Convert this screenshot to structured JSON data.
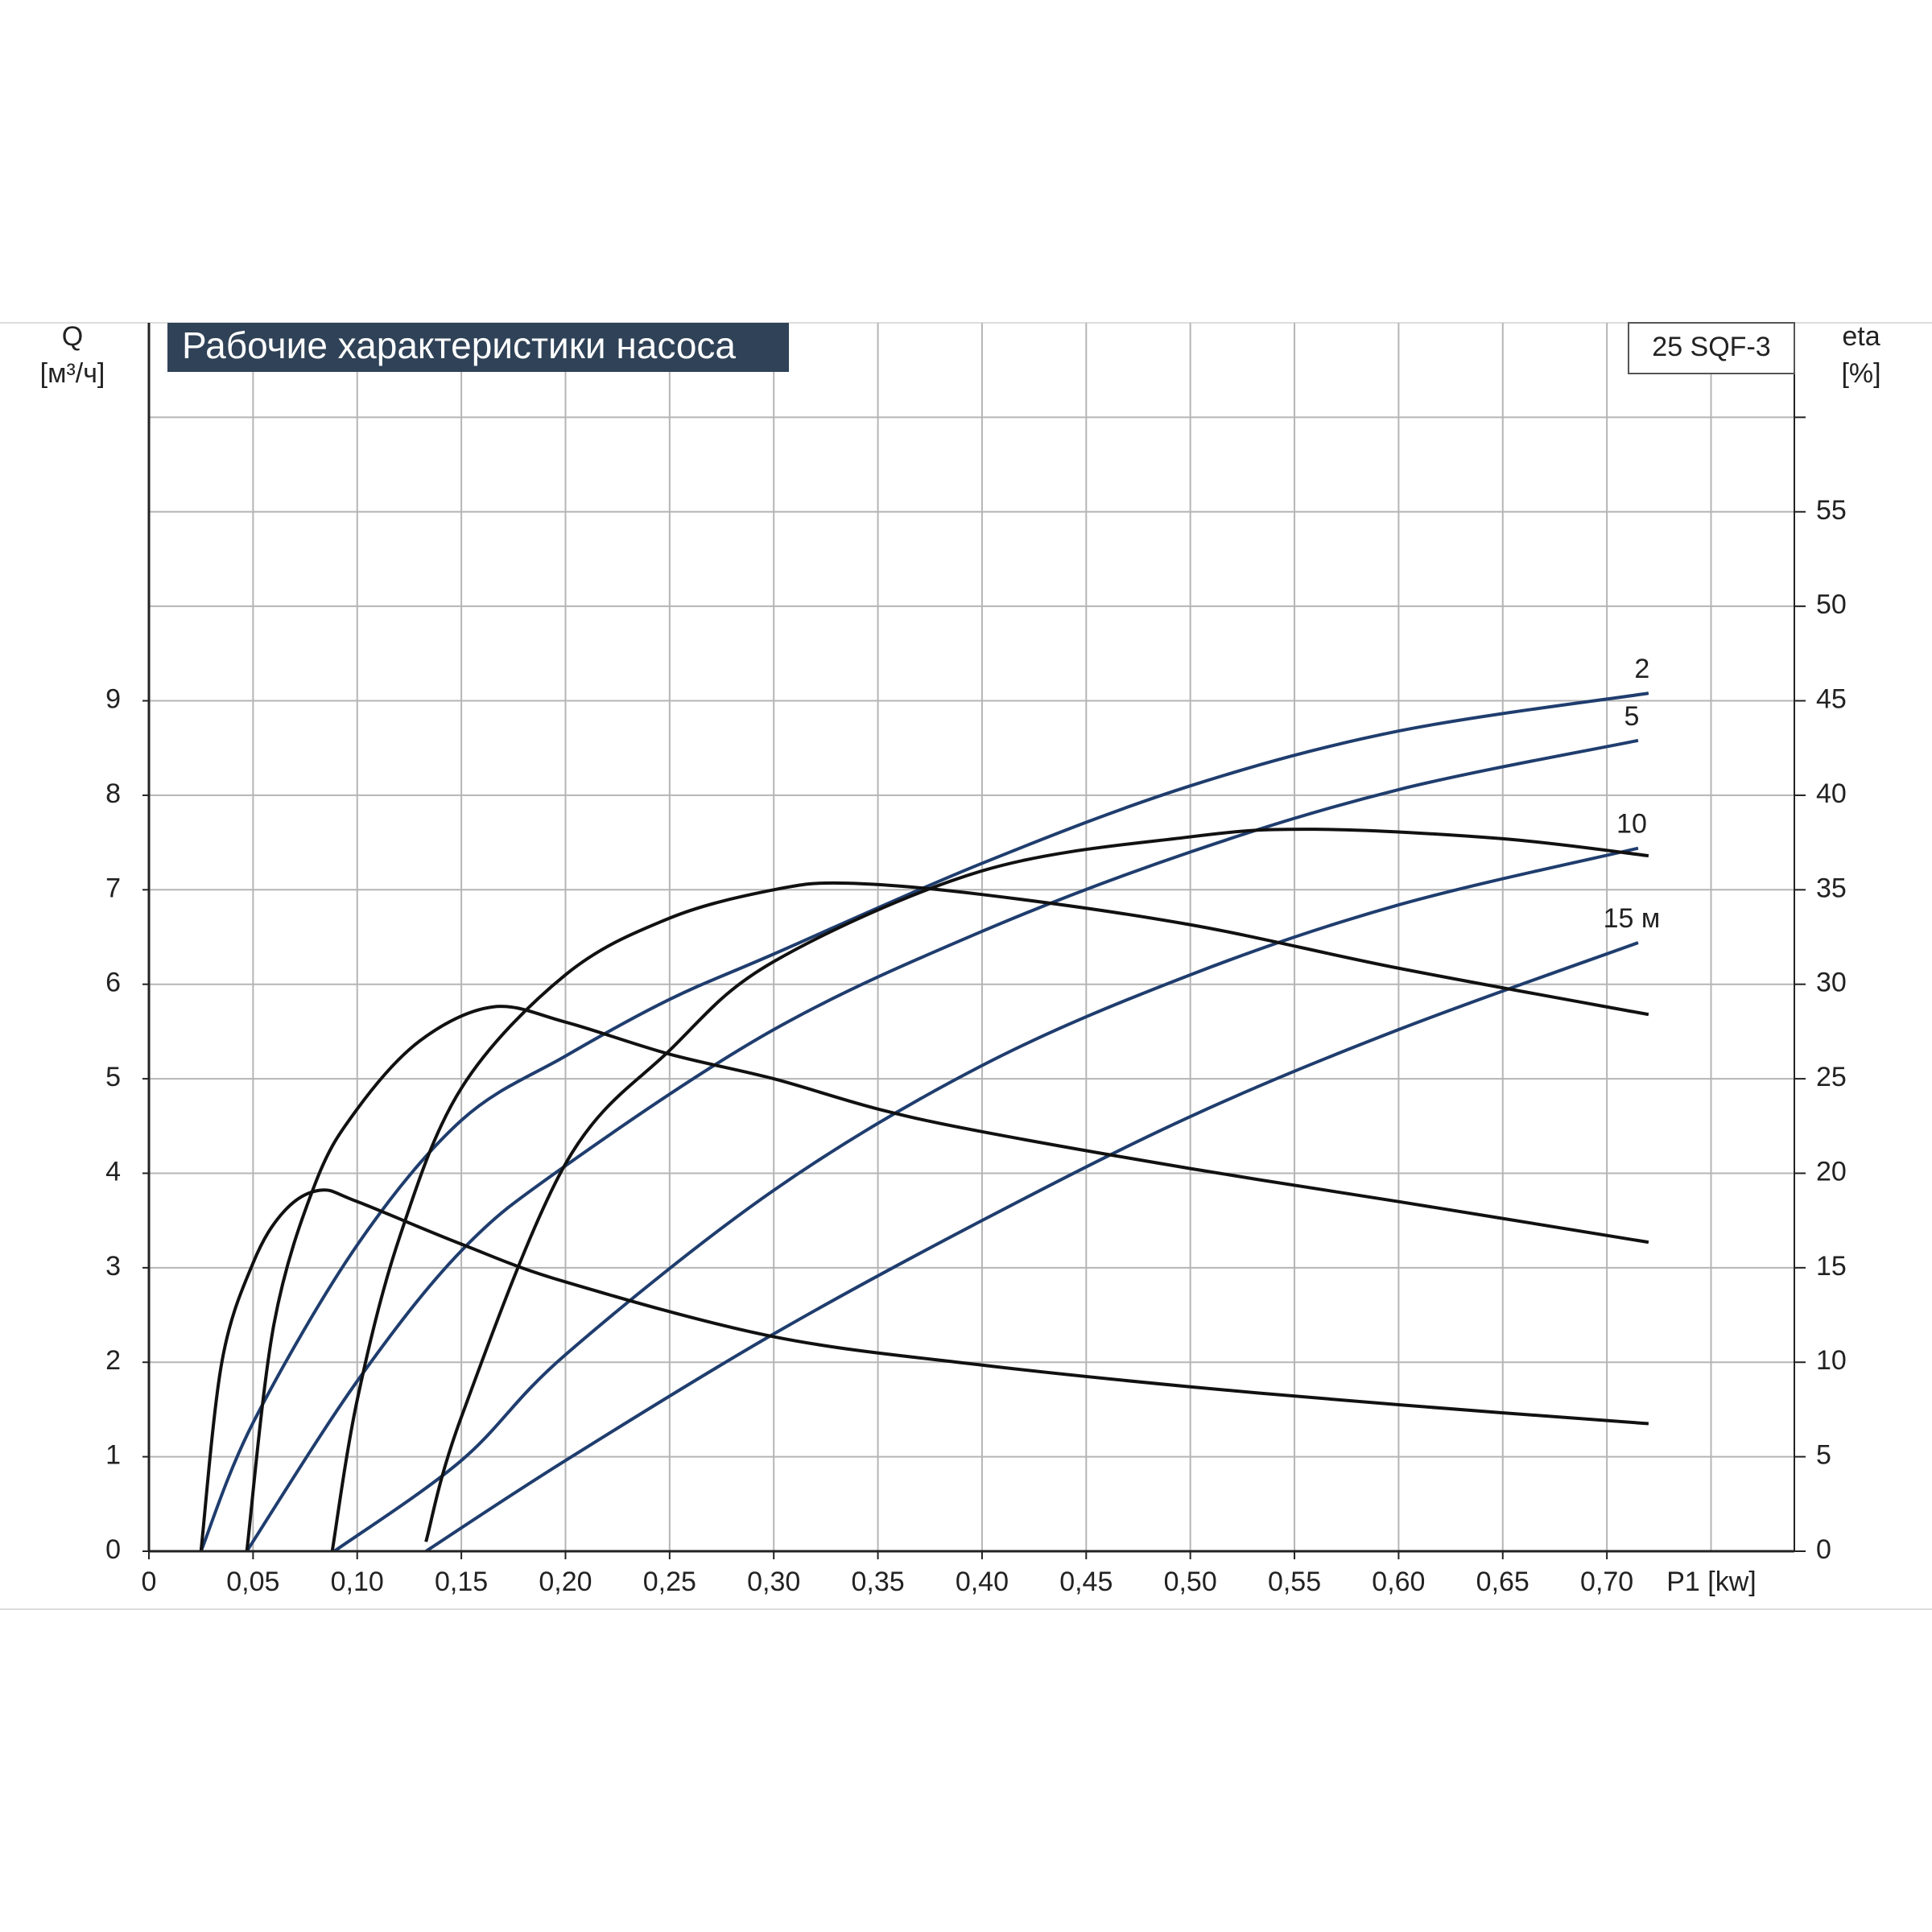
{
  "chart_data": {
    "type": "line",
    "title": "Рабочие характеристики насоса",
    "model": "25 SQF-3",
    "y_label": [
      "Q",
      "[м³/ч]"
    ],
    "y2_label": [
      "eta",
      "[%]"
    ],
    "x_label": "P1 [kw]",
    "xlim": [
      0,
      0.79
    ],
    "ylim": [
      0,
      13
    ],
    "y2lim": [
      0,
      65
    ],
    "xticks": [
      0,
      {
        "value": 0.05,
        "label": "0,05"
      },
      {
        "value": 0.1,
        "label": "0,10"
      },
      {
        "value": 0.15,
        "label": "0,15"
      },
      {
        "value": 0.2,
        "label": "0,20"
      },
      {
        "value": 0.25,
        "label": "0,25"
      },
      {
        "value": 0.3,
        "label": "0,30"
      },
      {
        "value": 0.35,
        "label": "0,35"
      },
      {
        "value": 0.4,
        "label": "0,40"
      },
      {
        "value": 0.45,
        "label": "0,45"
      },
      {
        "value": 0.5,
        "label": "0,50"
      },
      {
        "value": 0.55,
        "label": "0,55"
      },
      {
        "value": 0.6,
        "label": "0,60"
      },
      {
        "value": 0.65,
        "label": "0,65"
      },
      {
        "value": 0.7,
        "label": "0,70"
      }
    ],
    "yticks": [
      0,
      1,
      2,
      3,
      4,
      5,
      6,
      7,
      8,
      9
    ],
    "y2ticks": [
      0,
      5,
      10,
      15,
      20,
      25,
      30,
      35,
      40,
      45,
      50,
      55
    ],
    "grid": true,
    "series": [
      {
        "name": "2",
        "axis": "y2",
        "color": "#1f3d6e",
        "x": [
          0.025,
          0.05,
          0.1,
          0.15,
          0.2,
          0.25,
          0.3,
          0.4,
          0.5,
          0.6,
          0.72
        ],
        "values": [
          0,
          6.8,
          16.2,
          22.8,
          26.2,
          29.2,
          31.6,
          36.4,
          40.5,
          43.4,
          45.4
        ]
      },
      {
        "name": "5",
        "axis": "y2",
        "color": "#1f3d6e",
        "x": [
          0.047,
          0.1,
          0.15,
          0.2,
          0.3,
          0.4,
          0.5,
          0.6,
          0.715
        ],
        "values": [
          0,
          9,
          15.9,
          20.4,
          27.6,
          32.8,
          37,
          40.3,
          42.9
        ]
      },
      {
        "name": "10",
        "axis": "y2",
        "color": "#1f3d6e",
        "x": [
          0.089,
          0.15,
          0.2,
          0.3,
          0.4,
          0.5,
          0.6,
          0.715
        ],
        "values": [
          0,
          4.8,
          10.4,
          19.1,
          25.7,
          30.5,
          34.2,
          37.2
        ]
      },
      {
        "name": "15 м",
        "axis": "y2",
        "color": "#1f3d6e",
        "x": [
          0.133,
          0.2,
          0.3,
          0.4,
          0.5,
          0.6,
          0.715
        ],
        "values": [
          0,
          4.8,
          11.5,
          17.5,
          23,
          27.6,
          32.2
        ]
      },
      {
        "color": "#111111",
        "x": [
          0.025,
          0.035,
          0.05,
          0.065,
          0.082,
          0.1,
          0.15,
          0.2,
          0.3,
          0.4,
          0.5,
          0.6,
          0.72
        ],
        "values": [
          0,
          2.0,
          3.05,
          3.6,
          3.82,
          3.7,
          3.25,
          2.85,
          2.27,
          1.97,
          1.74,
          1.55,
          1.35
        ]
      },
      {
        "color": "#111111",
        "x": [
          0.047,
          0.06,
          0.08,
          0.1,
          0.13,
          0.165,
          0.2,
          0.25,
          0.3,
          0.35,
          0.4,
          0.5,
          0.6,
          0.72
        ],
        "values": [
          0,
          2.4,
          3.9,
          4.68,
          5.4,
          5.76,
          5.6,
          5.26,
          5.0,
          4.68,
          4.44,
          4.05,
          3.7,
          3.27
        ]
      },
      {
        "color": "#111111",
        "x": [
          0.088,
          0.1,
          0.12,
          0.15,
          0.2,
          0.25,
          0.3,
          0.335,
          0.4,
          0.5,
          0.6,
          0.72
        ],
        "values": [
          0,
          1.6,
          3.3,
          4.9,
          6.1,
          6.7,
          7.0,
          7.07,
          6.95,
          6.63,
          6.17,
          5.68
        ]
      },
      {
        "color": "#111111",
        "x": [
          0.133,
          0.15,
          0.2,
          0.25,
          0.3,
          0.4,
          0.5,
          0.56,
          0.65,
          0.72
        ],
        "values": [
          0.1,
          1.42,
          4.1,
          5.3,
          6.24,
          7.2,
          7.56,
          7.64,
          7.54,
          7.36
        ]
      }
    ]
  }
}
